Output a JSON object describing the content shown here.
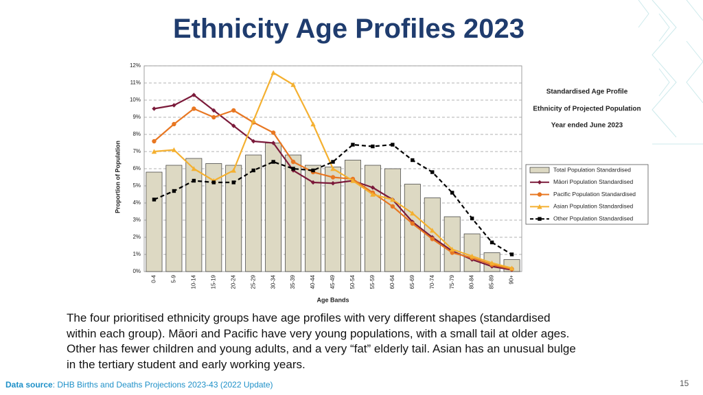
{
  "title": "Ethnicity Age Profiles 2023",
  "body_lines": [
    "The four prioritised ethnicity groups have age profiles with very different shapes (standardised",
    "within each group). Māori and Pacific have very young populations, with a small tail at older ages.",
    "Other has fewer children and young adults, and a very “fat” elderly tail. Asian has an unusual bulge",
    "in the tertiary student and early working years."
  ],
  "footer": {
    "label": "Data source",
    "text": ": DHB Births and Deaths Projections 2023-43 (2022 Update)"
  },
  "page_number": "15",
  "chart_data": {
    "type": "bar",
    "annotations": [
      "Standardised Age Profile",
      "Ethnicity  of Projected Population",
      "Year ended June 2023"
    ],
    "x_label": "Age Bands",
    "y_label": "Proportion of Population",
    "categories": [
      "0-4",
      "5-9",
      "10-14",
      "15-19",
      "20-24",
      "25-29",
      "30-34",
      "35-39",
      "40-44",
      "45-49",
      "50-54",
      "55-59",
      "60-64",
      "65-69",
      "70-74",
      "75-79",
      "80-84",
      "85-89",
      "90+"
    ],
    "ylim": [
      0,
      12
    ],
    "yticks": [
      {
        "value": 0,
        "label": "0%"
      },
      {
        "value": 1,
        "label": "1%"
      },
      {
        "value": 2,
        "label": "2%"
      },
      {
        "value": 3,
        "label": "3%"
      },
      {
        "value": 4,
        "label": "4%"
      },
      {
        "value": 5,
        "label": "5%"
      },
      {
        "value": 6,
        "label": "6%"
      },
      {
        "value": 7,
        "label": "7%"
      },
      {
        "value": 8,
        "label": "8%"
      },
      {
        "value": 9,
        "label": "9%"
      },
      {
        "value": 10,
        "label": "10%"
      },
      {
        "value": 11,
        "label": "11%"
      },
      {
        "value": 12,
        "label": "12%"
      }
    ],
    "grid": true,
    "legend": "right",
    "series": [
      {
        "name": "Total Population Standardised",
        "type": "bar",
        "color": "#ddd9c3",
        "values": [
          5.8,
          6.2,
          6.6,
          6.3,
          6.2,
          6.8,
          7.5,
          6.8,
          6.2,
          6.1,
          6.5,
          6.2,
          6.0,
          5.1,
          4.3,
          3.2,
          2.2,
          1.1,
          0.7
        ]
      },
      {
        "name": "Māori Population Standardised",
        "type": "line",
        "color": "#7b1a3a",
        "marker": "diamond",
        "dashed": false,
        "values": [
          9.5,
          9.7,
          10.3,
          9.4,
          8.5,
          7.6,
          7.5,
          5.9,
          5.2,
          5.15,
          5.3,
          4.9,
          4.2,
          2.9,
          2.0,
          1.2,
          0.7,
          0.3,
          0.1
        ]
      },
      {
        "name": "Pacific Population Standardised",
        "type": "line",
        "color": "#e87722",
        "marker": "circle",
        "dashed": false,
        "values": [
          7.6,
          8.6,
          9.5,
          9.0,
          9.4,
          8.7,
          8.1,
          6.4,
          5.8,
          5.5,
          5.4,
          4.6,
          3.8,
          2.8,
          1.9,
          1.1,
          0.8,
          0.4,
          0.15
        ]
      },
      {
        "name": "Asian Population Standardised",
        "type": "line",
        "color": "#f4b030",
        "marker": "triangle",
        "dashed": false,
        "values": [
          7.0,
          7.1,
          6.0,
          5.3,
          5.9,
          8.8,
          11.6,
          10.9,
          8.6,
          6.0,
          5.3,
          4.5,
          4.2,
          3.4,
          2.4,
          1.3,
          0.9,
          0.5,
          0.2
        ]
      },
      {
        "name": "Other Population Standardised",
        "type": "line",
        "color": "#000000",
        "marker": "square",
        "dashed": true,
        "values": [
          4.2,
          4.7,
          5.3,
          5.2,
          5.2,
          5.9,
          6.4,
          6.0,
          5.9,
          6.4,
          7.4,
          7.3,
          7.4,
          6.5,
          5.8,
          4.6,
          3.1,
          1.7,
          1.0
        ]
      }
    ]
  }
}
